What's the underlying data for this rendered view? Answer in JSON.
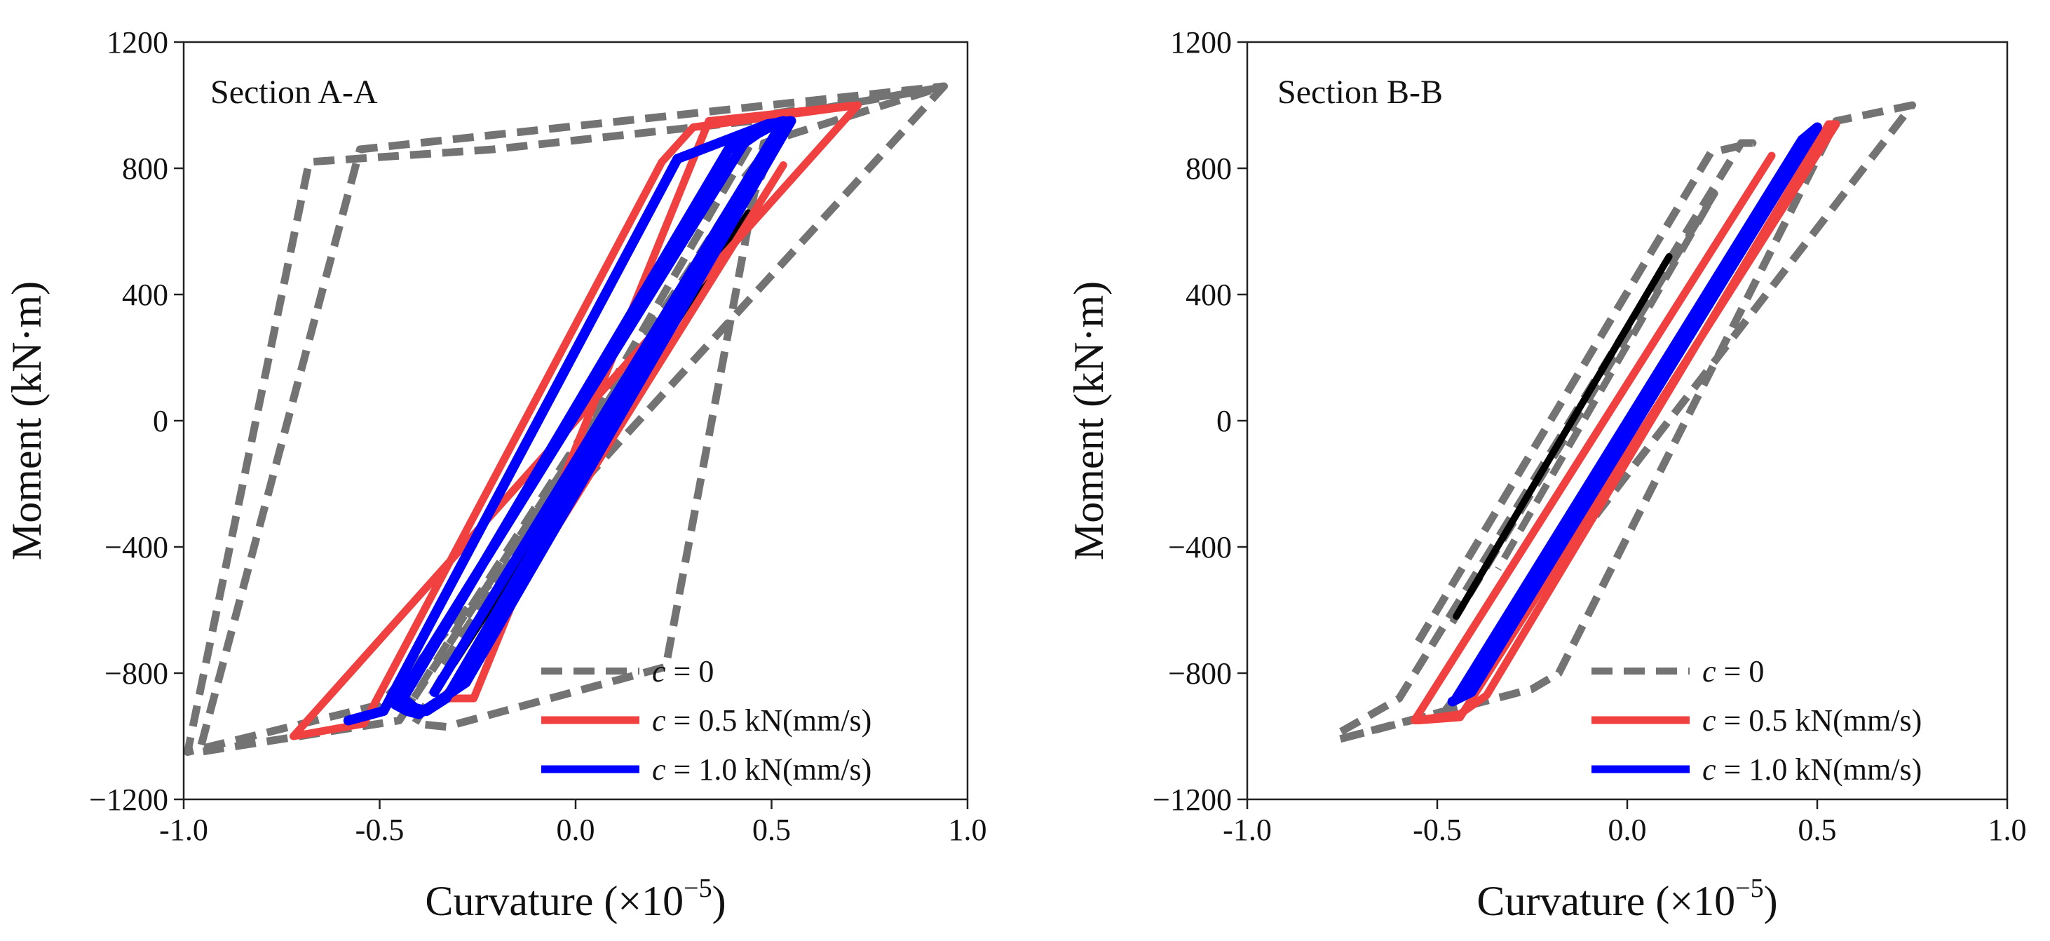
{
  "chart_data": [
    {
      "type": "line",
      "panel_label": "Section A-A",
      "xlabel": "Curvature (×10",
      "xlabel_exp": "−5",
      "xlabel_close": ")",
      "ylabel": "Moment (kN·m)",
      "xlim": [
        -1.0,
        1.0
      ],
      "ylim": [
        -1200,
        1200
      ],
      "x_ticks": [
        -1.0,
        -0.5,
        0.0,
        0.5,
        1.0
      ],
      "x_tick_labels": [
        "-1.0",
        "-0.5",
        "0.0",
        "0.5",
        "1.0"
      ],
      "y_ticks": [
        -1200,
        -800,
        -400,
        0,
        400,
        800,
        1200
      ],
      "y_tick_labels": [
        "−1200",
        "−800",
        "−400",
        "0",
        "400",
        "800",
        "1200"
      ],
      "grid": false,
      "legend_position": "bottom-right",
      "legend": [
        {
          "prefix": "c",
          "text": " = 0",
          "color": "#737373",
          "dash": true
        },
        {
          "prefix": "c",
          "text": " = 0.5 kN(mm/s)",
          "color": "#f04040",
          "dash": false
        },
        {
          "prefix": "c",
          "text": " = 1.0 kN(mm/s)",
          "color": "#0000ff",
          "dash": false
        }
      ],
      "series": [
        {
          "color": "#737373",
          "dash": true,
          "width": 11,
          "x": [
            0.43,
            0.55,
            -0.45,
            -0.96,
            -0.55,
            0.94,
            0.49,
            -0.41,
            -0.33,
            0.23,
            0.48,
            0.94,
            -0.5,
            -0.99,
            -0.68,
            -0.21,
            0.45,
            0.95
          ],
          "y": [
            770,
            950,
            -950,
            -1050,
            860,
            1060,
            970,
            -960,
            -970,
            -780,
            880,
            1060,
            -900,
            -1050,
            820,
            860,
            950,
            1060
          ]
        },
        {
          "color": "#737373",
          "dash": true,
          "width": 10,
          "x": [
            -0.34,
            0.45,
            0.53,
            -0.31,
            -0.42
          ],
          "y": [
            -770,
            700,
            940,
            -670,
            -890
          ]
        },
        {
          "color": "#000000",
          "dash": false,
          "width": 9,
          "x": [
            -0.31,
            0.44
          ],
          "y": [
            -770,
            660
          ]
        },
        {
          "color": "#f04040",
          "dash": false,
          "width": 11,
          "x": [
            0.53,
            -0.28,
            -0.34,
            -0.26,
            0.34,
            0.72,
            -0.72,
            -0.54,
            0.22,
            0.3,
            0.72
          ],
          "y": [
            810,
            -800,
            -880,
            -880,
            950,
            1000,
            -1000,
            -960,
            820,
            930,
            1000
          ]
        },
        {
          "color": "#0000ff",
          "dash": false,
          "width": 14,
          "x": [
            -0.58,
            -0.49,
            0.26,
            0.49,
            0.55,
            -0.28,
            -0.4,
            -0.43,
            -0.46,
            0.43,
            0.5,
            0.53,
            -0.33,
            -0.38,
            -0.41,
            -0.44,
            0.39,
            0.51,
            0.53,
            -0.36
          ],
          "y": [
            -950,
            -920,
            830,
            940,
            950,
            -830,
            -930,
            -920,
            -900,
            880,
            940,
            950,
            -880,
            -920,
            -910,
            -880,
            860,
            940,
            950,
            -860
          ]
        }
      ]
    },
    {
      "type": "line",
      "panel_label": "Section B-B",
      "xlabel": "Curvature (×10",
      "xlabel_exp": "−5",
      "xlabel_close": ")",
      "ylabel": "Moment (kN·m)",
      "xlim": [
        -1.0,
        1.0
      ],
      "ylim": [
        -1200,
        1200
      ],
      "x_ticks": [
        -1.0,
        -0.5,
        0.0,
        0.5,
        1.0
      ],
      "x_tick_labels": [
        "-1.0",
        "-0.5",
        "0.0",
        "0.5",
        "1.0"
      ],
      "y_ticks": [
        -1200,
        -800,
        -400,
        0,
        400,
        800,
        1200
      ],
      "y_tick_labels": [
        "−1200",
        "−800",
        "−400",
        "0",
        "400",
        "800",
        "1200"
      ],
      "grid": false,
      "legend_position": "bottom-right",
      "legend": [
        {
          "prefix": "c",
          "text": " = 0",
          "color": "#737373",
          "dash": true
        },
        {
          "prefix": "c",
          "text": " = 0.5 kN(mm/s)",
          "color": "#f04040",
          "dash": false
        },
        {
          "prefix": "c",
          "text": " = 1.0 kN(mm/s)",
          "color": "#0000ff",
          "dash": false
        }
      ],
      "series": [
        {
          "color": "#737373",
          "dash": true,
          "width": 11,
          "x": [
            -0.55,
            0.22,
            0.33,
            0.3,
            -0.6,
            -0.76,
            -0.76,
            -0.48,
            0.75,
            0.55,
            -0.18,
            -0.25,
            -0.76
          ],
          "y": [
            -700,
            850,
            880,
            880,
            -880,
            -990,
            -1010,
            -920,
            1000,
            950,
            -800,
            -850,
            -1010
          ]
        },
        {
          "color": "#737373",
          "dash": true,
          "width": 10,
          "x": [
            -0.46,
            0.23,
            -0.34
          ],
          "y": [
            -640,
            720,
            -470
          ]
        },
        {
          "color": "#000000",
          "dash": false,
          "width": 10,
          "x": [
            -0.45,
            0.11
          ],
          "y": [
            -620,
            520
          ]
        },
        {
          "color": "#f04040",
          "dash": false,
          "width": 11,
          "x": [
            0.38,
            -0.56,
            -0.55,
            -0.44,
            0.55,
            0.53,
            -0.37,
            -0.44,
            -0.56
          ],
          "y": [
            840,
            -950,
            -950,
            -940,
            940,
            940,
            -870,
            -930,
            -950
          ]
        },
        {
          "color": "#0000ff",
          "dash": false,
          "width": 14,
          "x": [
            -0.45,
            0.46,
            0.5,
            -0.41,
            -0.46
          ],
          "y": [
            -880,
            890,
            930,
            -860,
            -890
          ]
        }
      ]
    }
  ]
}
